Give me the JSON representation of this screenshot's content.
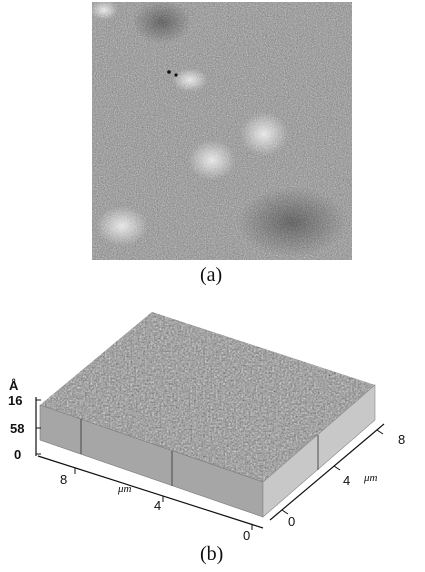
{
  "panel_a": {
    "caption": "(a)"
  },
  "panel_b": {
    "caption": "(b)",
    "z_unit": "Å",
    "z_ticks": [
      "16",
      "58",
      "0"
    ],
    "front_axis_unit": "μm",
    "front_ticks": [
      "8",
      "4",
      "0"
    ],
    "right_axis_unit": "μm",
    "right_ticks": [
      "8",
      "4",
      "0"
    ]
  },
  "colors": {
    "background": "#ffffff",
    "afm_gray": "#8c8c8c",
    "front_face": "#a6a6a6",
    "right_face": "#c8c8c8"
  }
}
